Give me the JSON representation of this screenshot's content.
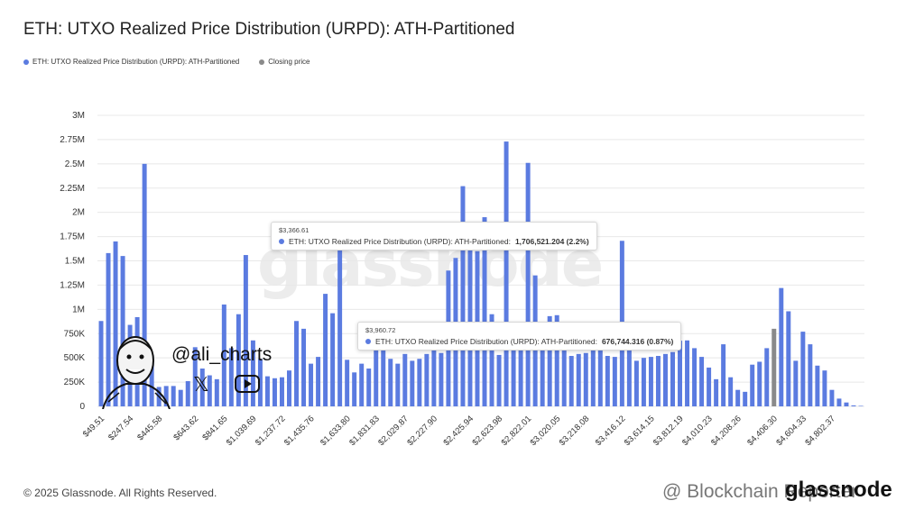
{
  "colors": {
    "primary": "#5b7be0",
    "closing": "#8a8a8a",
    "grid": "#e8e8e8"
  },
  "legend": [
    {
      "label": "ETH: UTXO Realized Price Distribution (URPD): ATH-Partitioned",
      "color": "#5b7be0"
    },
    {
      "label": "Closing price",
      "color": "#8a8a8a"
    }
  ],
  "watermark": "glassnode",
  "tooltips": [
    {
      "date": "$3,366.61",
      "series": "ETH: UTXO Realized Price Distribution (URPD): ATH-Partitioned:",
      "value": "1,706,521.204 (2.2%)"
    },
    {
      "date": "$3,960.72",
      "series": "ETH: UTXO Realized Price Distribution (URPD): ATH-Partitioned:",
      "value": "676,744.316 (0.87%)"
    }
  ],
  "overlay": {
    "handle": "@ali_charts",
    "x_icon": "x-logo-icon",
    "youtube_icon": "youtube-icon"
  },
  "footer": {
    "copyright": "© 2025 Glassnode. All Rights Reserved.",
    "brand_left": "@ Blockchain Reporter",
    "brand_right": "glassnode"
  },
  "chart_data": {
    "type": "bar",
    "title": "ETH: UTXO Realized Price Distribution (URPD): ATH-Partitioned",
    "xlabel": "",
    "ylabel": "",
    "ylim": [
      0,
      3000000
    ],
    "yticks": [
      "0",
      "250K",
      "500K",
      "750K",
      "1M",
      "1.25M",
      "1.5M",
      "1.75M",
      "2M",
      "2.25M",
      "2.5M",
      "2.75M",
      "3M"
    ],
    "xtick_labels": [
      "$49.51",
      "$247.54",
      "$445.58",
      "$643.62",
      "$841.65",
      "$1,039.69",
      "$1,237.72",
      "$1,435.76",
      "$1,633.80",
      "$1,831.83",
      "$2,029.87",
      "$2,227.90",
      "$2,425.94",
      "$2,623.98",
      "$2,822.01",
      "$3,020.05",
      "$3,218.08",
      "$3,416.12",
      "$3,614.15",
      "$3,812.19",
      "$4,010.23",
      "$4,208.26",
      "$4,406.30",
      "$4,604.33",
      "$4,802.37"
    ],
    "closing_price_index": 102,
    "grid": true,
    "legend_position": "top-left",
    "series": [
      {
        "name": "ETH: UTXO Realized Price Distribution (URPD): ATH-Partitioned",
        "values": [
          880000,
          1580000,
          1700000,
          1550000,
          840000,
          920000,
          2500000,
          520000,
          200000,
          210000,
          210000,
          170000,
          260000,
          610000,
          390000,
          320000,
          280000,
          1050000,
          600000,
          950000,
          1560000,
          680000,
          490000,
          310000,
          290000,
          300000,
          370000,
          880000,
          800000,
          440000,
          510000,
          1160000,
          960000,
          1700000,
          480000,
          350000,
          440000,
          390000,
          760000,
          780000,
          490000,
          440000,
          540000,
          470000,
          490000,
          540000,
          650000,
          550000,
          1400000,
          1530000,
          2270000,
          1650000,
          1600000,
          1950000,
          950000,
          530000,
          2730000,
          610000,
          590000,
          2510000,
          1350000,
          870000,
          930000,
          940000,
          800000,
          520000,
          540000,
          550000,
          580000,
          600000,
          520000,
          510000,
          1706521,
          600000,
          470000,
          500000,
          510000,
          520000,
          540000,
          560000,
          676744,
          680000,
          600000,
          510000,
          400000,
          280000,
          640000,
          300000,
          170000,
          150000,
          430000,
          460000,
          600000,
          800000,
          1220000,
          980000,
          470000,
          770000,
          640000,
          420000,
          370000,
          170000,
          80000,
          40000,
          10000,
          5000
        ],
        "closing_values": [
          0,
          0,
          0,
          0,
          0,
          0,
          0,
          0,
          0,
          0,
          0,
          0,
          0,
          0,
          0,
          0,
          0,
          0,
          0,
          0,
          0,
          0,
          0,
          0,
          0,
          0,
          0,
          0,
          0,
          0,
          0,
          0,
          0,
          0,
          0,
          0,
          0,
          0,
          0,
          0,
          0,
          0,
          0,
          0,
          0,
          0,
          0,
          0,
          0,
          0,
          0,
          0,
          0,
          0,
          0,
          0,
          0,
          0,
          0,
          0,
          0,
          0,
          0,
          0,
          0,
          0,
          0,
          0,
          0,
          0,
          0,
          0,
          0,
          0,
          0,
          0,
          0,
          0,
          0,
          0,
          0,
          0,
          0,
          0,
          0,
          0,
          0,
          0,
          0,
          0,
          0,
          0,
          0,
          800000,
          0,
          0,
          0,
          0,
          0,
          0,
          0,
          0,
          0,
          0,
          0,
          0
        ]
      }
    ]
  }
}
